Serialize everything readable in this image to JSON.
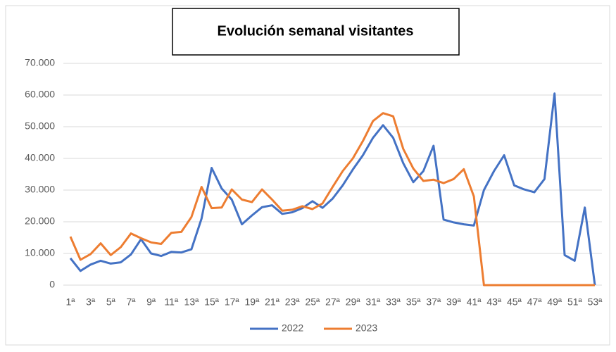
{
  "chart_data": {
    "type": "line",
    "title": "Evolución semanal visitantes",
    "categories": [
      "1ª",
      null,
      "3ª",
      null,
      "5ª",
      null,
      "7ª",
      null,
      "9ª",
      null,
      "11ª",
      null,
      "13ª",
      null,
      "15ª",
      null,
      "17ª",
      null,
      "19ª",
      null,
      "21ª",
      null,
      "23ª",
      null,
      "25ª",
      null,
      "27ª",
      null,
      "29ª",
      null,
      "31ª",
      null,
      "33ª",
      null,
      "35ª",
      null,
      "37ª",
      null,
      "39ª",
      null,
      "41ª",
      null,
      "43ª",
      null,
      "45ª",
      null,
      "47ª",
      null,
      "49ª",
      null,
      "51ª",
      null,
      "53ª"
    ],
    "series": [
      {
        "name": "2022",
        "color": "#4472c4",
        "values": [
          8500,
          4500,
          6500,
          7700,
          6800,
          7200,
          9700,
          14500,
          10000,
          9200,
          10500,
          10300,
          11300,
          21000,
          37000,
          30500,
          27000,
          19200,
          22000,
          24600,
          25200,
          22500,
          23000,
          24300,
          26500,
          24400,
          27300,
          31500,
          36500,
          41000,
          46500,
          50500,
          46500,
          38500,
          32500,
          36000,
          44000,
          20700,
          19800,
          19200,
          18800,
          30000,
          36000,
          41000,
          31500,
          30200,
          29300,
          33500,
          60500,
          9500,
          7700,
          24500,
          0
        ]
      },
      {
        "name": "2023",
        "color": "#ed7d31",
        "values": [
          15300,
          8000,
          9800,
          13200,
          9500,
          12000,
          16300,
          14800,
          13500,
          13000,
          16500,
          16800,
          21500,
          31000,
          24300,
          24500,
          30200,
          27000,
          26200,
          30200,
          27000,
          23500,
          23800,
          24900,
          24000,
          25800,
          31000,
          36000,
          40000,
          45500,
          51800,
          54300,
          53300,
          43000,
          36800,
          32900,
          33300,
          32200,
          33500,
          36600,
          28000,
          0,
          0,
          0,
          0,
          0,
          0,
          0,
          0,
          0,
          0,
          0,
          0
        ]
      }
    ],
    "ylim": [
      0,
      70000
    ],
    "yticks": [
      0,
      {
        "value": 10000,
        "label": "10.000"
      },
      {
        "value": 20000,
        "label": "20.000"
      },
      {
        "value": 30000,
        "label": "30.000"
      },
      {
        "value": 40000,
        "label": "40.000"
      },
      {
        "value": 50000,
        "label": "50.000"
      },
      {
        "value": 60000,
        "label": "60.000"
      },
      {
        "value": 70000,
        "label": "70.000"
      }
    ],
    "grid": true,
    "legend": "bottom"
  }
}
